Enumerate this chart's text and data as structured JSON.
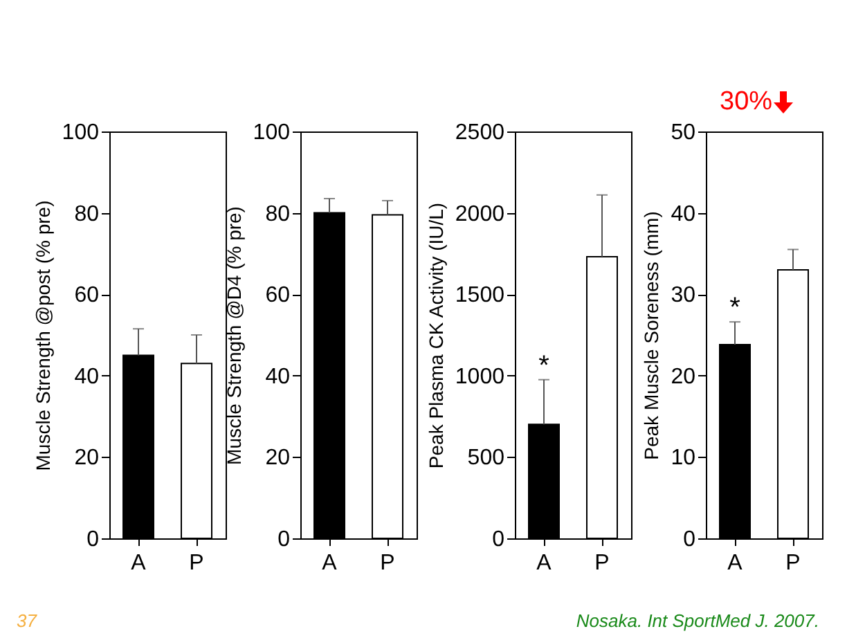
{
  "chart_data": [
    {
      "type": "bar",
      "ylabel": "Muscle Strength @post (% pre)",
      "categories": [
        "A",
        "P"
      ],
      "values": [
        45,
        43
      ],
      "colors": [
        "#000000",
        "#ffffff"
      ],
      "errors": [
        [
          45,
          51.5
        ],
        [
          43,
          50
        ]
      ],
      "ylim": [
        0,
        100
      ],
      "yticks": [
        0,
        20,
        40,
        60,
        80,
        100
      ],
      "grid": false,
      "annotations": [
        "37"
      ]
    },
    {
      "type": "bar",
      "ylabel": "Muscle Strength @D4 (% pre)",
      "categories": [
        "A",
        "P"
      ],
      "values": [
        80,
        79.5
      ],
      "colors": [
        "#000000",
        "#ffffff"
      ],
      "errors": [
        [
          80,
          83.5
        ],
        [
          79.5,
          83
        ]
      ],
      "ylim": [
        0,
        100
      ],
      "yticks": [
        0,
        20,
        40,
        60,
        80,
        100
      ],
      "grid": false
    },
    {
      "type": "bar",
      "ylabel": "Peak Plasma CK Activity (IU/L)",
      "categories": [
        "A",
        "P"
      ],
      "values": [
        700,
        1730
      ],
      "colors": [
        "#000000",
        "#ffffff"
      ],
      "errors": [
        [
          700,
          975
        ],
        [
          1730,
          2110
        ]
      ],
      "ylim": [
        0,
        2500
      ],
      "yticks": [
        0,
        500,
        1000,
        1500,
        2000,
        2500
      ],
      "grid": false,
      "annotations": [
        {
          "text": "*",
          "x": "A",
          "y": 975
        }
      ]
    },
    {
      "type": "bar",
      "ylabel": "Peak Muscle Soreness (mm)",
      "categories": [
        "A",
        "P"
      ],
      "values": [
        23.8,
        33
      ],
      "colors": [
        "#000000",
        "#ffffff"
      ],
      "errors": [
        [
          23.8,
          26.6
        ],
        [
          33,
          35.5
        ]
      ],
      "ylim": [
        0,
        50
      ],
      "yticks": [
        0,
        10,
        20,
        30,
        40,
        50
      ],
      "grid": false,
      "annotations": [
        "30%",
        {
          "text": "*",
          "x": "A",
          "y": 26.6
        },
        "Nosaka. Int SportMed J. 2007."
      ]
    }
  ]
}
